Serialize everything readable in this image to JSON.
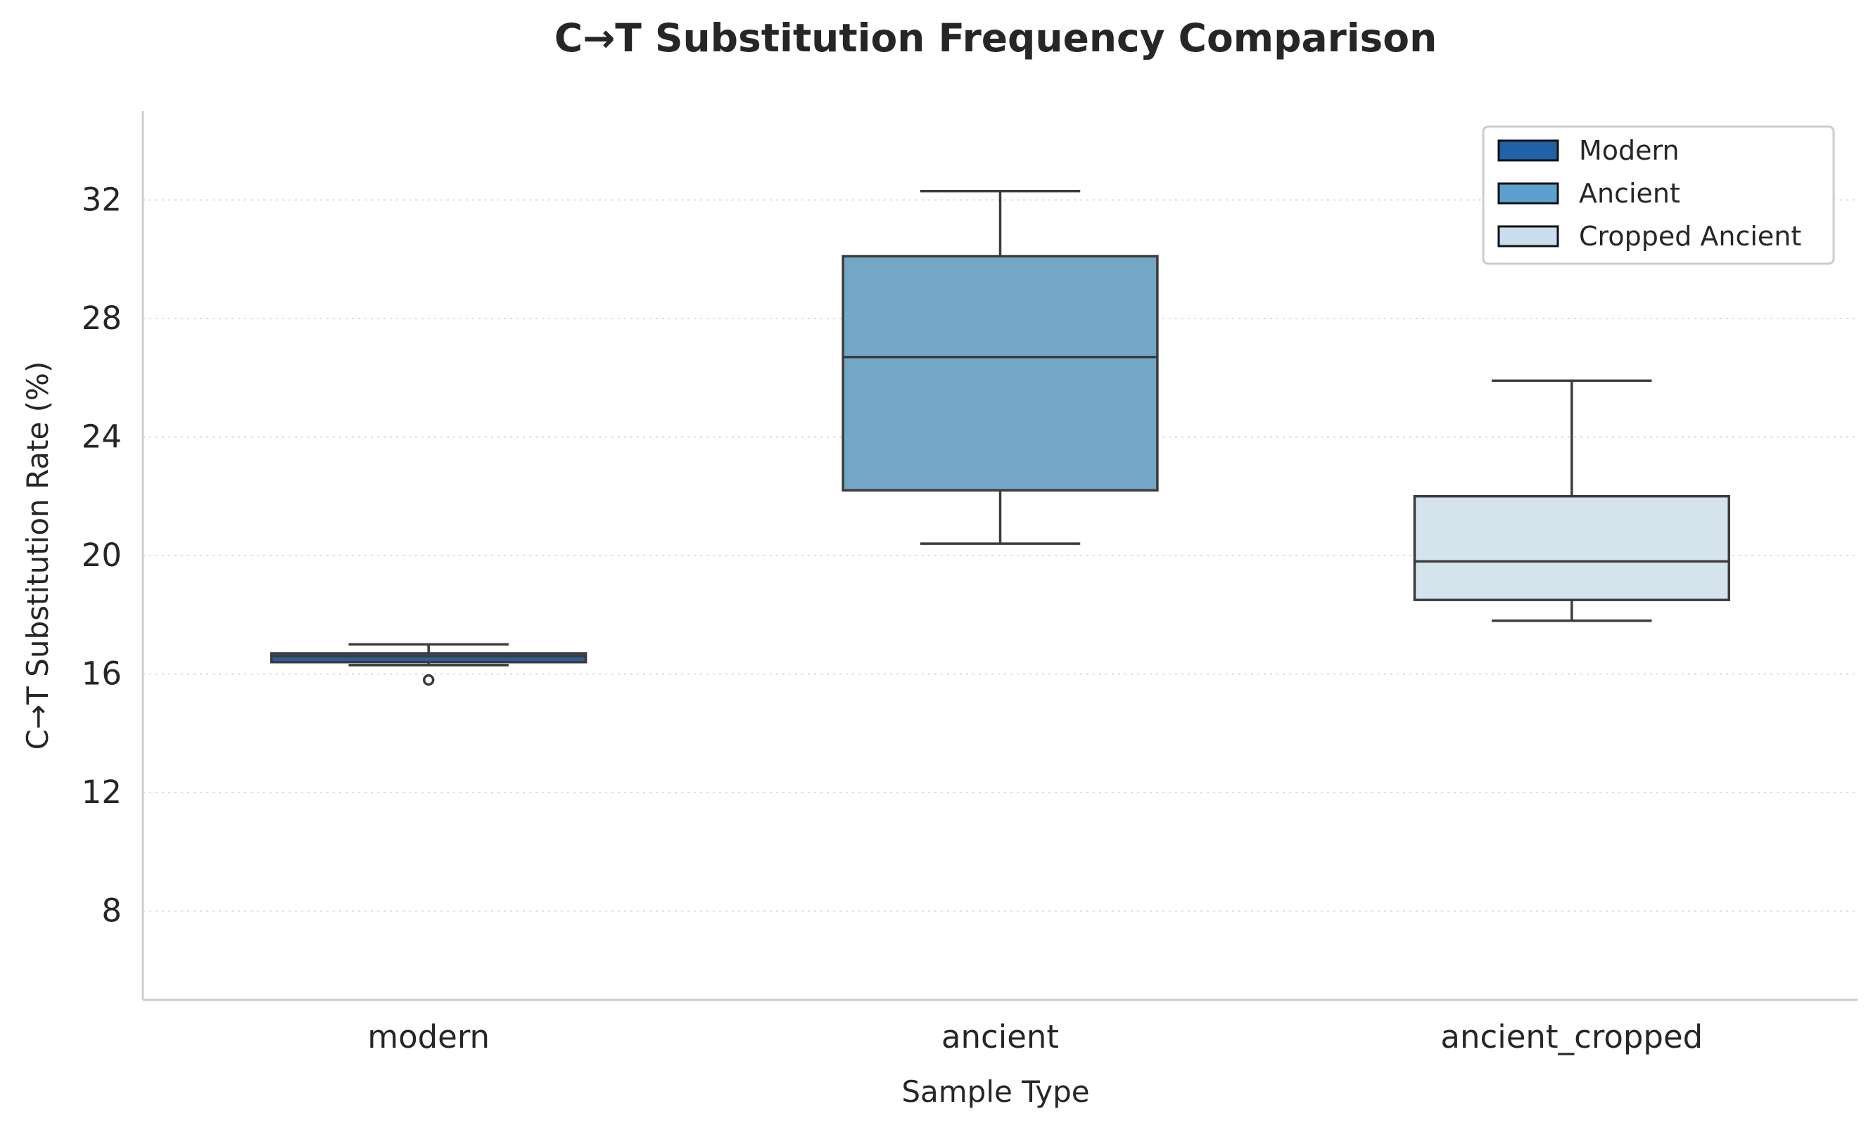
{
  "chart_data": {
    "type": "box",
    "title": "C→T Substitution Frequency Comparison",
    "xlabel": "Sample Type",
    "ylabel": "C→T Substitution Rate (%)",
    "ylim": [
      5,
      35
    ],
    "yticks": [
      8,
      12,
      16,
      20,
      24,
      28,
      32
    ],
    "grid": "horizontal-dotted",
    "legend_position": "top-right",
    "categories": [
      "modern",
      "ancient",
      "ancient_cropped"
    ],
    "boxes": [
      {
        "category": "modern",
        "whisker_low": 16.3,
        "q1": 16.4,
        "median": 16.6,
        "q3": 16.7,
        "whisker_high": 17.0,
        "outliers": [
          15.8
        ],
        "color": "#2a5f9e"
      },
      {
        "category": "ancient",
        "whisker_low": 20.4,
        "q1": 22.2,
        "median": 26.7,
        "q3": 30.1,
        "whisker_high": 32.3,
        "outliers": [],
        "color": "#74a6c5"
      },
      {
        "category": "ancient_cropped",
        "whisker_low": 17.8,
        "q1": 18.5,
        "median": 19.8,
        "q3": 22.0,
        "whisker_high": 25.9,
        "outliers": [],
        "color": "#d5e3ec"
      }
    ],
    "legend": [
      {
        "label": "Modern",
        "color": "#2061a8"
      },
      {
        "label": "Ancient",
        "color": "#5ba1d0"
      },
      {
        "label": "Cropped Ancient",
        "color": "#c9ddee"
      }
    ]
  }
}
